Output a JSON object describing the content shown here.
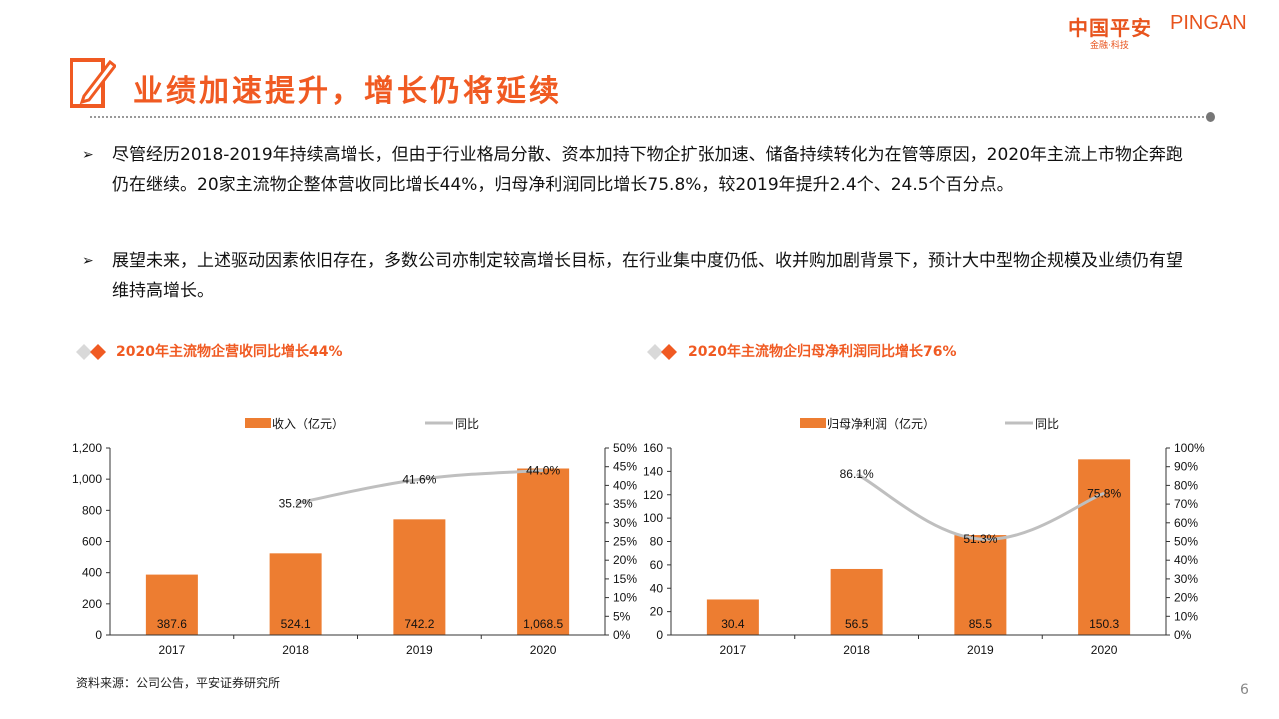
{
  "logo": {
    "cn": "中国平安",
    "en": "PINGAN",
    "sub": "金融·科技"
  },
  "title": "业绩加速提升，增长仍将延续",
  "bullets": [
    "尽管经历2018-2019年持续高增长，但由于行业格局分散、资本加持下物企扩张加速、储备持续转化为在管等原因，2020年主流上市物企奔跑仍在继续。20家主流物企整体营收同比增长44%，归母净利润同比增长75.8%，较2019年提升2.4个、24.5个百分点。",
    "展望未来，上述驱动因素依旧存在，多数公司亦制定较高增长目标，在行业集中度仍低、收并购加剧背景下，预计大中型物企规模及业绩仍有望维持高增长。"
  ],
  "bullet_icon": "arrow-right-icon",
  "source": "资料来源：公司公告，平安证券研究所",
  "page_number": "6",
  "colors": {
    "accent": "#f05a22",
    "bar": "#ed7d31",
    "line": "#bfbfbf"
  },
  "chart_data": [
    {
      "type": "bar+line",
      "title": "2020年主流物企营收同比增长44%",
      "categories": [
        "2017",
        "2018",
        "2019",
        "2020"
      ],
      "series": [
        {
          "name": "收入（亿元）",
          "type": "bar",
          "axis": "left",
          "values": [
            387.6,
            524.1,
            742.2,
            1068.5
          ],
          "labels": [
            "387.6",
            "524.1",
            "742.2",
            "1,068.5"
          ]
        },
        {
          "name": "同比",
          "type": "line",
          "axis": "right",
          "values": [
            null,
            35.2,
            41.6,
            44.0
          ],
          "labels": [
            "",
            "35.2%",
            "41.6%",
            "44.0%"
          ]
        }
      ],
      "y_left": {
        "range": [
          0,
          1200
        ],
        "ticks": [
          "0",
          "200",
          "400",
          "600",
          "800",
          "1,000",
          "1,200"
        ]
      },
      "y_right": {
        "range": [
          0,
          50
        ],
        "ticks": [
          "0%",
          "5%",
          "10%",
          "15%",
          "20%",
          "25%",
          "30%",
          "35%",
          "40%",
          "45%",
          "50%"
        ]
      },
      "legend": "top",
      "grid": false
    },
    {
      "type": "bar+line",
      "title": "2020年主流物企归母净利润同比增长76%",
      "categories": [
        "2017",
        "2018",
        "2019",
        "2020"
      ],
      "series": [
        {
          "name": "归母净利润（亿元）",
          "type": "bar",
          "axis": "left",
          "values": [
            30.4,
            56.5,
            85.5,
            150.3
          ],
          "labels": [
            "30.4",
            "56.5",
            "85.5",
            "150.3"
          ]
        },
        {
          "name": "同比",
          "type": "line",
          "axis": "right",
          "values": [
            null,
            86.1,
            51.3,
            75.8
          ],
          "labels": [
            "",
            "86.1%",
            "51.3%",
            "75.8%"
          ]
        }
      ],
      "y_left": {
        "range": [
          0,
          160
        ],
        "ticks": [
          "0",
          "20",
          "40",
          "60",
          "80",
          "100",
          "120",
          "140",
          "160"
        ]
      },
      "y_right": {
        "range": [
          0,
          100
        ],
        "ticks": [
          "0%",
          "10%",
          "20%",
          "30%",
          "40%",
          "50%",
          "60%",
          "70%",
          "80%",
          "90%",
          "100%"
        ]
      },
      "legend": "top",
      "grid": false
    }
  ]
}
